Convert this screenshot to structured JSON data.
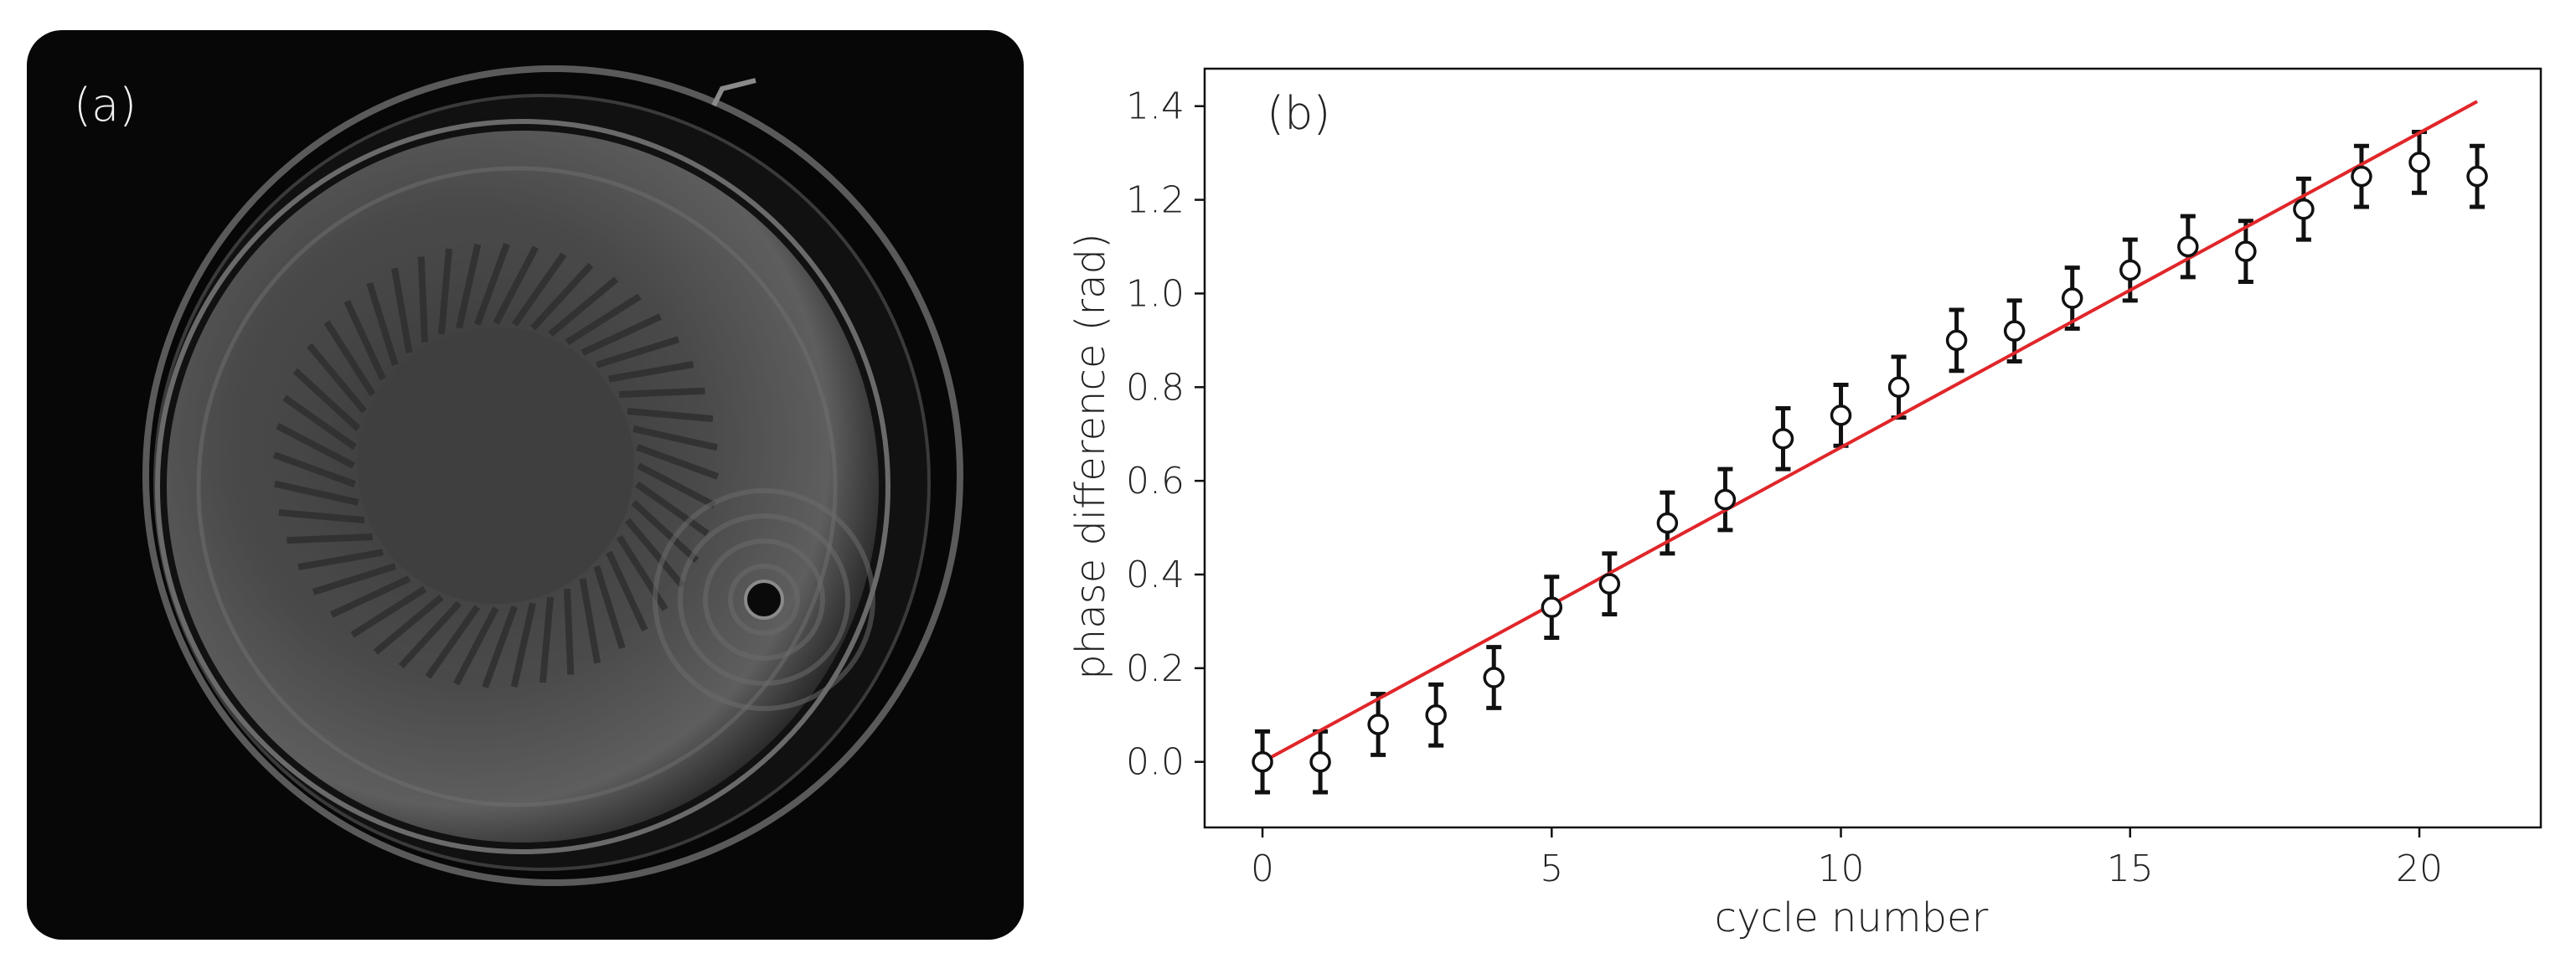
{
  "panel_a": {
    "label": "(a)"
  },
  "chart_data": {
    "type": "scatter",
    "panel_label": "(b)",
    "xlabel": "cycle number",
    "ylabel": "phase difference (rad)",
    "xlim": [
      -1,
      22.1
    ],
    "ylim": [
      -0.14,
      1.48
    ],
    "x_ticks": [
      0,
      5,
      10,
      15,
      20
    ],
    "x_tick_labels": [
      "0",
      "5",
      "10",
      "15",
      "20"
    ],
    "y_ticks": [
      0.0,
      0.2,
      0.4,
      0.6,
      0.8,
      1.0,
      1.2,
      1.4
    ],
    "y_tick_labels": [
      "0.0",
      "0.2",
      "0.4",
      "0.6",
      "0.8",
      "1.0",
      "1.2",
      "1.4"
    ],
    "grid": false,
    "series": [
      {
        "marker": "open-circle",
        "color": "#111111",
        "x": [
          0,
          1,
          2,
          3,
          4,
          5,
          6,
          7,
          8,
          9,
          10,
          11,
          12,
          13,
          14,
          15,
          16,
          17,
          18,
          19,
          20,
          21
        ],
        "y": [
          0.0,
          0.0,
          0.08,
          0.1,
          0.18,
          0.33,
          0.38,
          0.51,
          0.56,
          0.69,
          0.74,
          0.8,
          0.9,
          0.92,
          0.99,
          1.05,
          1.1,
          1.09,
          1.18,
          1.25,
          1.28,
          1.25
        ],
        "yerr": [
          0.065,
          0.065,
          0.065,
          0.065,
          0.065,
          0.065,
          0.065,
          0.065,
          0.065,
          0.065,
          0.065,
          0.065,
          0.065,
          0.065,
          0.065,
          0.065,
          0.065,
          0.065,
          0.065,
          0.065,
          0.065,
          0.065
        ]
      }
    ],
    "fit_line": {
      "color": "#e0262a",
      "x": [
        0,
        21
      ],
      "y": [
        0.0,
        1.41
      ]
    }
  }
}
